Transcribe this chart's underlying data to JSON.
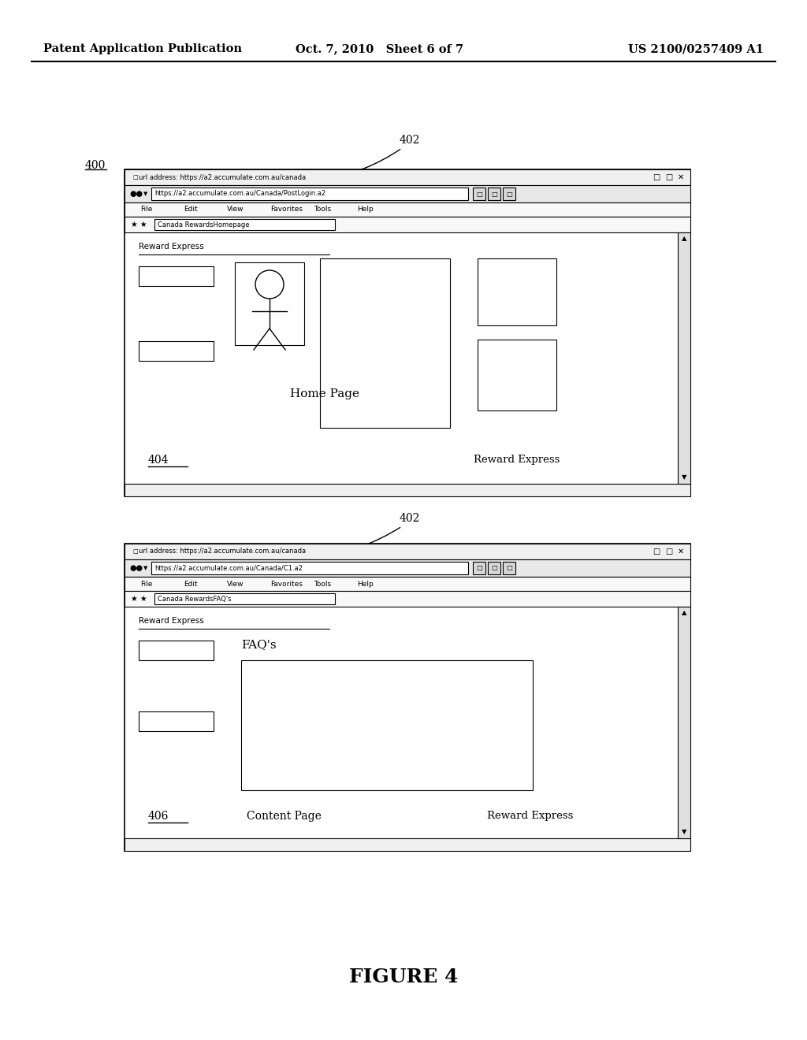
{
  "bg_color": "#ffffff",
  "header_left": "Patent Application Publication",
  "header_mid": "Oct. 7, 2010   Sheet 6 of 7",
  "header_right": "US 2100/0257409 A1",
  "figure_label": "FIGURE 4",
  "fig_label_400": "400",
  "fig_label_402a": "402",
  "fig_label_404": "404",
  "fig_label_402b": "402",
  "fig_label_406": "406",
  "browser1": {
    "url_bar_text": "url address: https://a2.accumulate.com.au/canada",
    "nav_bar_text": "https://a2.accumulate.com.au/Canada/PostLogin.a2",
    "menu_items": [
      "File",
      "Edit",
      "View",
      "Favorites",
      "Tools",
      "Help"
    ],
    "bookmark_text": "Canada RewardsHomepage",
    "header_text": "Reward Express",
    "label_404": "404",
    "label_home": "Home Page",
    "label_reward": "Reward Express"
  },
  "browser2": {
    "url_bar_text": "url address: https://a2.accumulate.com.au/canada",
    "nav_bar_text": "https://a2.accumulate.com.au/Canada/C1.a2",
    "menu_items": [
      "File",
      "Edit",
      "View",
      "Favorites",
      "Tools",
      "Help"
    ],
    "bookmark_text": "Canada RewardsFAQ's",
    "header_text": "Reward Express",
    "label_406": "406",
    "label_faq": "FAQ's",
    "label_content": "Content Page",
    "label_reward": "Reward Express"
  },
  "layout": {
    "fig_w": 10.24,
    "fig_h": 13.2,
    "dpi": 100
  }
}
